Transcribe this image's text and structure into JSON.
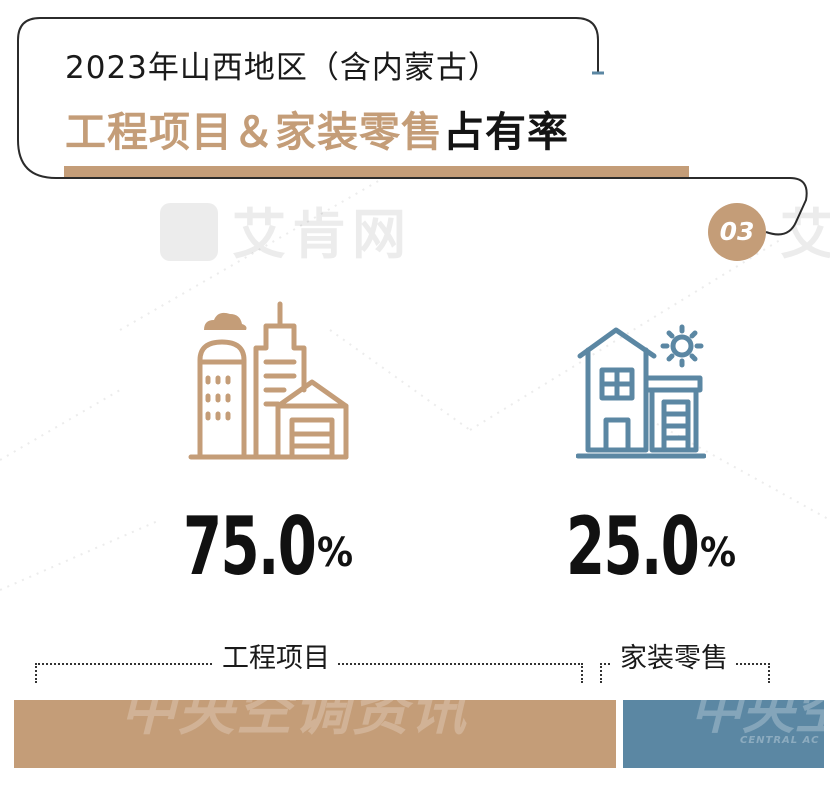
{
  "header": {
    "title_line1": "2023年山西地区（含内蒙古）",
    "title_highlight": "工程项目＆家装零售",
    "title_tail": "占有率",
    "badge": "03"
  },
  "watermarks": {
    "top": "艾肯网",
    "top_right": "艾",
    "bottom": "中央空调资讯",
    "bottom_right": "中央空",
    "bottom_right_en": "CENTRAL AC"
  },
  "icons": {
    "left": "city-buildings-icon",
    "right": "house-with-sun-icon"
  },
  "colors": {
    "engineering": "#c49d78",
    "retail": "#5b87a3",
    "text": "#141414"
  },
  "chart_data": {
    "type": "bar",
    "orientation": "horizontal-stacked",
    "title": "2023年山西地区（含内蒙古）工程项目＆家装零售占有率",
    "categories": [
      "工程项目",
      "家装零售"
    ],
    "values": [
      75.0,
      25.0
    ],
    "unit": "%",
    "labels": [
      "75.0%",
      "25.0%"
    ],
    "value_text": [
      {
        "num": "75.0",
        "sym": "%"
      },
      {
        "num": "25.0",
        "sym": "%"
      }
    ],
    "colors": [
      "#c49d78",
      "#5b87a3"
    ],
    "xlabel": "",
    "ylabel": "",
    "ylim": [
      0,
      100
    ],
    "grid": false
  }
}
